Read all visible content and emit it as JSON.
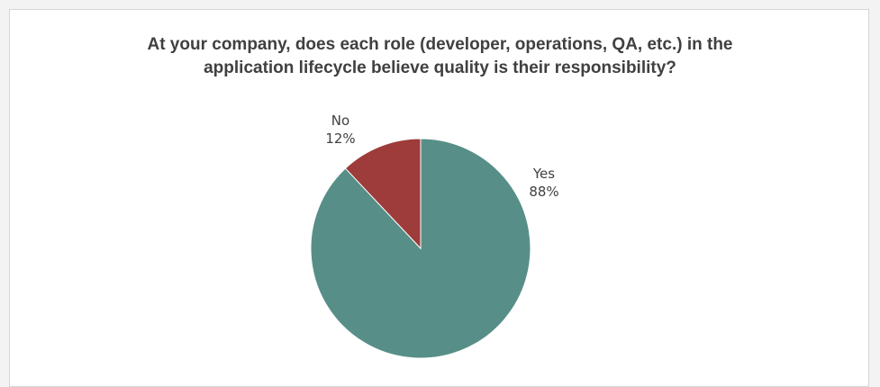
{
  "chart_data": {
    "type": "pie",
    "title_lines": [
      "At your company, does each role (developer, operations, QA, etc.) in the",
      "application lifecycle believe quality is their responsibility?"
    ],
    "slices": [
      {
        "label": "Yes",
        "value": 88,
        "value_text": "88%",
        "color": "#578f88"
      },
      {
        "label": "No",
        "value": 12,
        "value_text": "12%",
        "color": "#9e3b3b"
      }
    ],
    "start_angle_deg": 0,
    "direction": "clockwise",
    "legend": "none"
  }
}
